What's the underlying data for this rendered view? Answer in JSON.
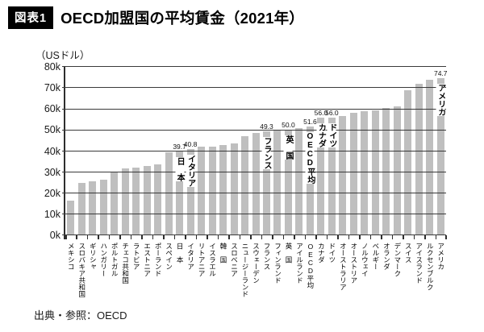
{
  "header": {
    "badge": "図表1",
    "title": "OECD加盟国の平均賃金（2021年）"
  },
  "footer": {
    "source": "出典・参照：OECD"
  },
  "chart_data": {
    "type": "bar",
    "title": "OECD加盟国の平均賃金（2021年）",
    "unit_label": "（USドル）",
    "xlabel": "",
    "ylabel": "USドル",
    "values_unit": "thousand USD",
    "ylim": [
      0,
      80
    ],
    "ytick_labels": [
      "0k",
      "10k",
      "20k",
      "30k",
      "40k",
      "50k",
      "60k",
      "70k",
      "80k"
    ],
    "grid": true,
    "legend": false,
    "bar_color": "#bfbfbf",
    "categories": [
      "メキシコ",
      "スロバキア共和国",
      "ギリシャ",
      "ハンガリー",
      "ポルトガル",
      "チェコ共和国",
      "ラトビア",
      "エストニア",
      "ポーランド",
      "スペイン",
      "日　本",
      "イタリア",
      "リトアニア",
      "イスラエル",
      "韓　国",
      "スロベニア",
      "ニュージーランド",
      "スウェーデン",
      "フランス",
      "フィンランド",
      "英　国",
      "アイルランド",
      "OECD平均",
      "カナダ",
      "ドイツ",
      "オーストラリア",
      "オーストリア",
      "ノルウェイ",
      "ベルギー",
      "オランダ",
      "デンマーク",
      "スイス",
      "アイスランド",
      "ルクセンブルク",
      "アメリカ"
    ],
    "values": [
      16.5,
      24.7,
      25.8,
      26.3,
      29.9,
      31.7,
      32.2,
      33.1,
      33.6,
      39.4,
      39.7,
      40.8,
      42.0,
      42.2,
      42.7,
      43.8,
      46.9,
      48.5,
      49.3,
      49.7,
      50.0,
      50.9,
      51.6,
      56.0,
      56.0,
      56.5,
      58.2,
      58.8,
      59.2,
      60.6,
      61.1,
      68.9,
      71.8,
      73.9,
      74.7
    ],
    "callouts": [
      {
        "index": 10,
        "value_label": "39.7",
        "annotation": "日　本"
      },
      {
        "index": 11,
        "value_label": "40.8",
        "annotation": "イタリア"
      },
      {
        "index": 18,
        "value_label": "49.3",
        "annotation": "フランス"
      },
      {
        "index": 20,
        "value_label": "50.0",
        "annotation": "英　国"
      },
      {
        "index": 22,
        "value_label": "51.6",
        "annotation": "OECD平均"
      },
      {
        "index": 23,
        "value_label": "56.0",
        "annotation": "カナダ"
      },
      {
        "index": 24,
        "value_label": "56.0",
        "annotation": "ドイツ"
      },
      {
        "index": 34,
        "value_label": "74.7",
        "annotation": "アメリカ"
      }
    ]
  }
}
